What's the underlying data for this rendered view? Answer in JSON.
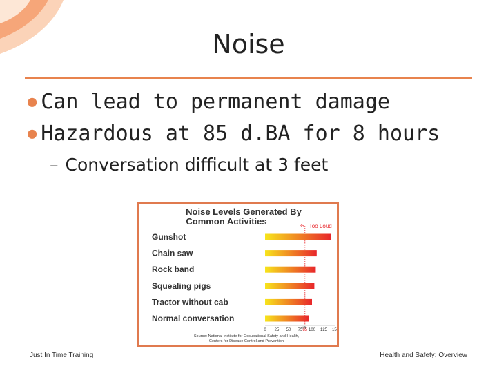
{
  "slide": {
    "title": "Noise",
    "bullets": [
      "Can lead to  permanent damage",
      "Hazardous at 85 d.BA for 8 hours"
    ],
    "sub_bullets": [
      "Conversation difficult at 3 feet"
    ],
    "footer_left": "Just In Time Training",
    "footer_right": "Health and Safety: Overview"
  },
  "colors": {
    "accent": "#e8834e",
    "frame": "#e07a4f",
    "bar_start": "#f7e51c",
    "bar_end": "#e8262b",
    "marker": "#e8262b"
  },
  "chart_data": {
    "type": "bar",
    "orientation": "horizontal",
    "title_line1": "Noise Levels Generated By",
    "title_line2": "Common Activities",
    "categories": [
      "Gunshot",
      "Chain saw",
      "Rock band",
      "Squealing pigs",
      "Tractor without cab",
      "Normal conversation"
    ],
    "values": [
      140,
      110,
      108,
      105,
      100,
      93
    ],
    "xlabel": "dB",
    "xlim": [
      0,
      150
    ],
    "ticks": [
      "0",
      "25",
      "50",
      "75",
      "85",
      "100",
      "125",
      "150"
    ],
    "tick_values": [
      0,
      25,
      50,
      75,
      85,
      100,
      125,
      150
    ],
    "threshold_value": 85,
    "threshold_label": "85",
    "threshold_text": "Too Loud",
    "source_line1": "Source: National Institute for Occupational Safety and Health,",
    "source_line2": "Centers for Disease Control and Prevention"
  }
}
